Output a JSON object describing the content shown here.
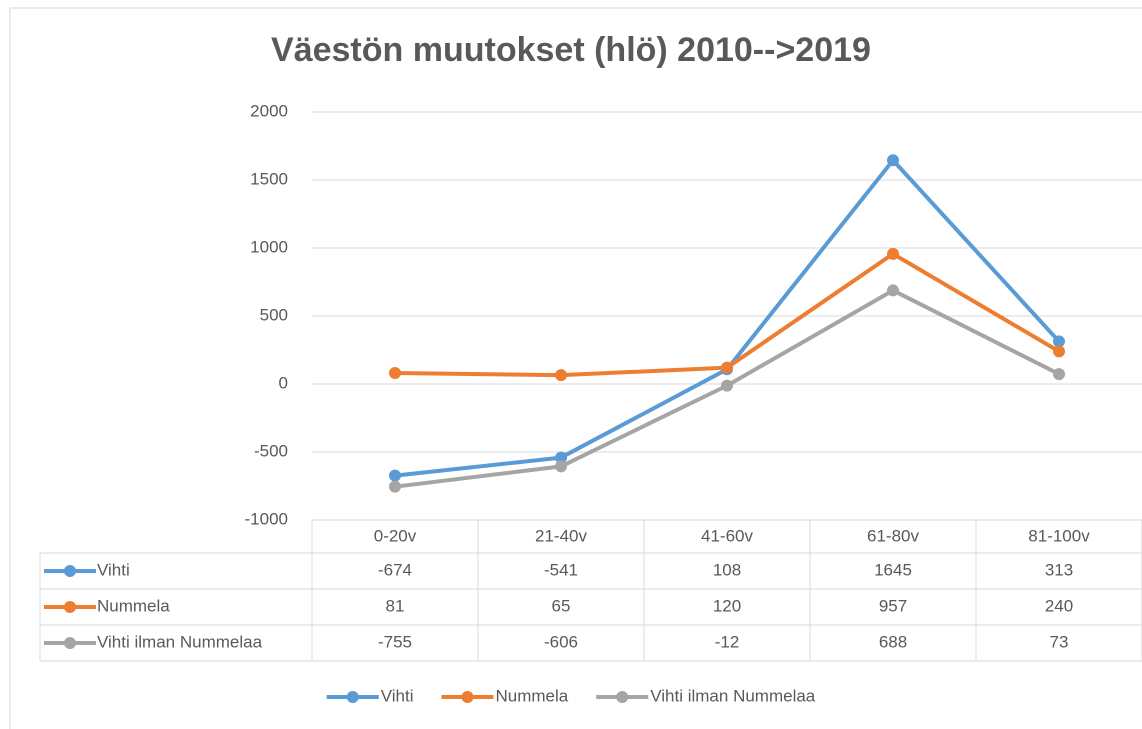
{
  "chart_data": {
    "type": "line",
    "title": "Väestön muutokset (hlö) 2010-->2019",
    "categories": [
      "0-20v",
      "21-40v",
      "41-60v",
      "61-80v",
      "81-100v"
    ],
    "series": [
      {
        "name": "Vihti",
        "color": "#5b9bd5",
        "values": [
          -674,
          -541,
          108,
          1645,
          313
        ]
      },
      {
        "name": "Nummela",
        "color": "#ed7d31",
        "values": [
          81,
          65,
          120,
          957,
          240
        ]
      },
      {
        "name": "Vihti ilman Nummelaa",
        "color": "#a5a5a5",
        "values": [
          -755,
          -606,
          -12,
          688,
          73
        ]
      }
    ],
    "ylim": [
      -1000,
      2000
    ],
    "yticks": [
      -1000,
      -500,
      0,
      500,
      1000,
      1500,
      2000
    ],
    "grid": true,
    "data_table": true,
    "legend": "bottom"
  }
}
